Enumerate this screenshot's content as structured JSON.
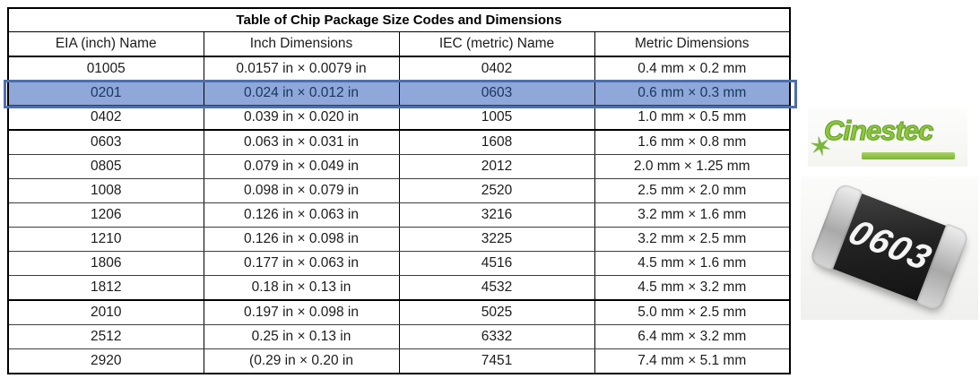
{
  "table": {
    "title": "Table of Chip Package Size Codes and Dimensions",
    "columns": [
      "EIA (inch) Name",
      "Inch Dimensions",
      "IEC (metric) Name",
      "Metric Dimensions"
    ],
    "rows": [
      {
        "eia": "01005",
        "inch": "0.0157 in × 0.0079 in",
        "iec": "0402",
        "metric": "0.4 mm × 0.2 mm",
        "highlighted": false
      },
      {
        "eia": "0201",
        "inch": "0.024 in × 0.012 in",
        "iec": "0603",
        "metric": "0.6 mm × 0.3 mm",
        "highlighted": true
      },
      {
        "eia": "0402",
        "inch": "0.039 in × 0.020 in",
        "iec": "1005",
        "metric": "1.0 mm × 0.5 mm",
        "highlighted": false
      },
      {
        "eia": "0603",
        "inch": "0.063 in × 0.031 in",
        "iec": "1608",
        "metric": "1.6 mm × 0.8 mm",
        "highlighted": false
      },
      {
        "eia": "0805",
        "inch": "0.079 in × 0.049 in",
        "iec": "2012",
        "metric": "2.0 mm × 1.25 mm",
        "highlighted": false
      },
      {
        "eia": "1008",
        "inch": "0.098 in × 0.079 in",
        "iec": "2520",
        "metric": "2.5 mm × 2.0 mm",
        "highlighted": false
      },
      {
        "eia": "1206",
        "inch": "0.126 in × 0.063 in",
        "iec": "3216",
        "metric": "3.2 mm × 1.6 mm",
        "highlighted": false
      },
      {
        "eia": "1210",
        "inch": "0.126 in × 0.098 in",
        "iec": "3225",
        "metric": "3.2 mm × 2.5 mm",
        "highlighted": false
      },
      {
        "eia": "1806",
        "inch": "0.177 in × 0.063 in",
        "iec": "4516",
        "metric": "4.5 mm × 1.6 mm",
        "highlighted": false
      },
      {
        "eia": "1812",
        "inch": "0.18 in × 0.13 in",
        "iec": "4532",
        "metric": "4.5 mm × 3.2 mm",
        "highlighted": false
      },
      {
        "eia": "2010",
        "inch": "0.197 in × 0.098 in",
        "iec": "5025",
        "metric": "5.0 mm × 2.5 mm",
        "highlighted": false
      },
      {
        "eia": "2512",
        "inch": "0.25 in × 0.13 in",
        "iec": "6332",
        "metric": "6.4 mm × 3.2 mm",
        "highlighted": false
      },
      {
        "eia": "2920",
        "inch": "(0.29 in × 0.20 in",
        "iec": "7451",
        "metric": "7.4 mm × 5.1 mm",
        "highlighted": false
      }
    ]
  },
  "highlight_colors": {
    "fill": "#8FA7D9",
    "border": "#4C6FAE",
    "text": "#17365D"
  },
  "logo": {
    "text": "Cinestec",
    "star_icon": "✶",
    "color": "#8dc63f"
  },
  "chip": {
    "label": "0603",
    "body_color": "#232323",
    "cap_color": "#b5b5b5"
  }
}
